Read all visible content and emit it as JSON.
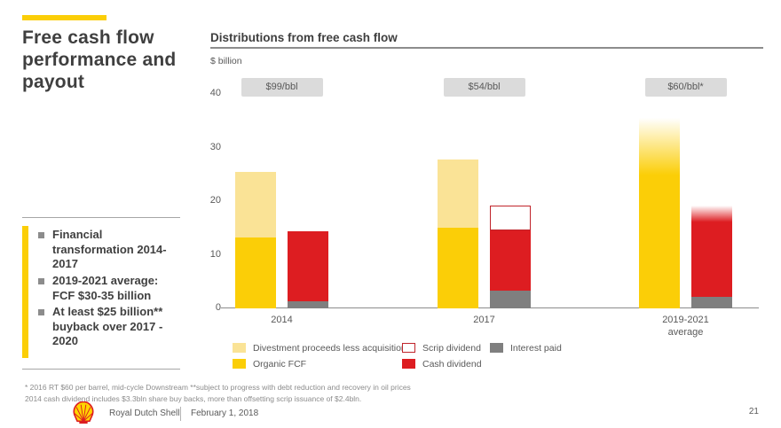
{
  "slide": {
    "title": "Free cash flow performance and payout",
    "bullets": [
      "Financial transformation 2014-2017",
      "2019-2021 average: FCF $30-35 billion",
      "At least $25 billion** buyback over 2017 - 2020"
    ],
    "footnotes": [
      "* 2016 RT $60 per barrel, mid-cycle Downstream **subject to progress with debt reduction and recovery in oil prices",
      "2014 cash dividend includes $3.3bln share buy backs, more than offsetting scrip issuance of $2.4bln."
    ],
    "footer": {
      "company": "Royal Dutch Shell",
      "date": "February 1, 2018",
      "page": "21"
    }
  },
  "chart_data": {
    "type": "bar",
    "title": "Distributions from free cash flow",
    "ylabel": "$ billion",
    "ylim": [
      0,
      40
    ],
    "yticks": [
      0,
      10,
      20,
      30,
      40
    ],
    "colors": {
      "organic_fcf": "#FBCE07",
      "divestment": "#FAE396",
      "cash_dividend": "#DD1D21",
      "scrip_outline": "#C0242B",
      "interest_paid": "#7F7F7F",
      "price_tag_bg": "#DBDBDB"
    },
    "groups": [
      {
        "label": "2014",
        "label2": "",
        "price_tag": "$99/bbl",
        "bars": [
          {
            "segments": [
              {
                "name": "Organic FCF",
                "value": 13.2,
                "color": "#FBCE07"
              },
              {
                "name": "Divestment proceeds less acquisitions",
                "value": 12.3,
                "color": "#FAE396"
              }
            ]
          },
          {
            "segments": [
              {
                "name": "Interest paid",
                "value": 1.3,
                "color": "#7F7F7F"
              },
              {
                "name": "Cash dividend",
                "value": 13.1,
                "color": "#DD1D21"
              }
            ]
          }
        ]
      },
      {
        "label": "2017",
        "label2": "",
        "price_tag": "$54/bbl",
        "bars": [
          {
            "segments": [
              {
                "name": "Organic FCF",
                "value": 15.0,
                "color": "#FBCE07"
              },
              {
                "name": "Divestment proceeds less acquisitions",
                "value": 12.8,
                "color": "#FAE396"
              }
            ]
          },
          {
            "segments": [
              {
                "name": "Interest paid",
                "value": 3.3,
                "color": "#7F7F7F"
              },
              {
                "name": "Cash dividend",
                "value": 11.2,
                "color": "#DD1D21"
              },
              {
                "name": "Scrip dividend",
                "value": 4.7,
                "color": "#FFFFFF",
                "outline": "#C0242B"
              }
            ]
          }
        ]
      },
      {
        "label": "2019-2021",
        "label2": "average",
        "price_tag": "$60/bbl*",
        "bars": [
          {
            "segments": [
              {
                "name": "Organic FCF",
                "value": 35.5,
                "color": "#FBCE07",
                "fade": 0.3
              }
            ]
          },
          {
            "segments": [
              {
                "name": "Interest paid",
                "value": 2.1,
                "color": "#7F7F7F"
              },
              {
                "name": "Cash dividend",
                "value": 17.1,
                "color": "#DD1D21",
                "fade": 0.18
              }
            ]
          }
        ]
      }
    ],
    "legend": {
      "columns": [
        [
          {
            "label": "Divestment proceeds less acquisitions",
            "color": "#FAE396"
          },
          {
            "label": "Organic FCF",
            "color": "#FBCE07"
          }
        ],
        [
          {
            "label": "Scrip dividend",
            "color": "#FFFFFF",
            "outline": "#C0242B"
          },
          {
            "label": "Cash dividend",
            "color": "#DD1D21"
          }
        ],
        [
          {
            "label": "Interest paid",
            "color": "#7F7F7F"
          }
        ]
      ]
    }
  }
}
